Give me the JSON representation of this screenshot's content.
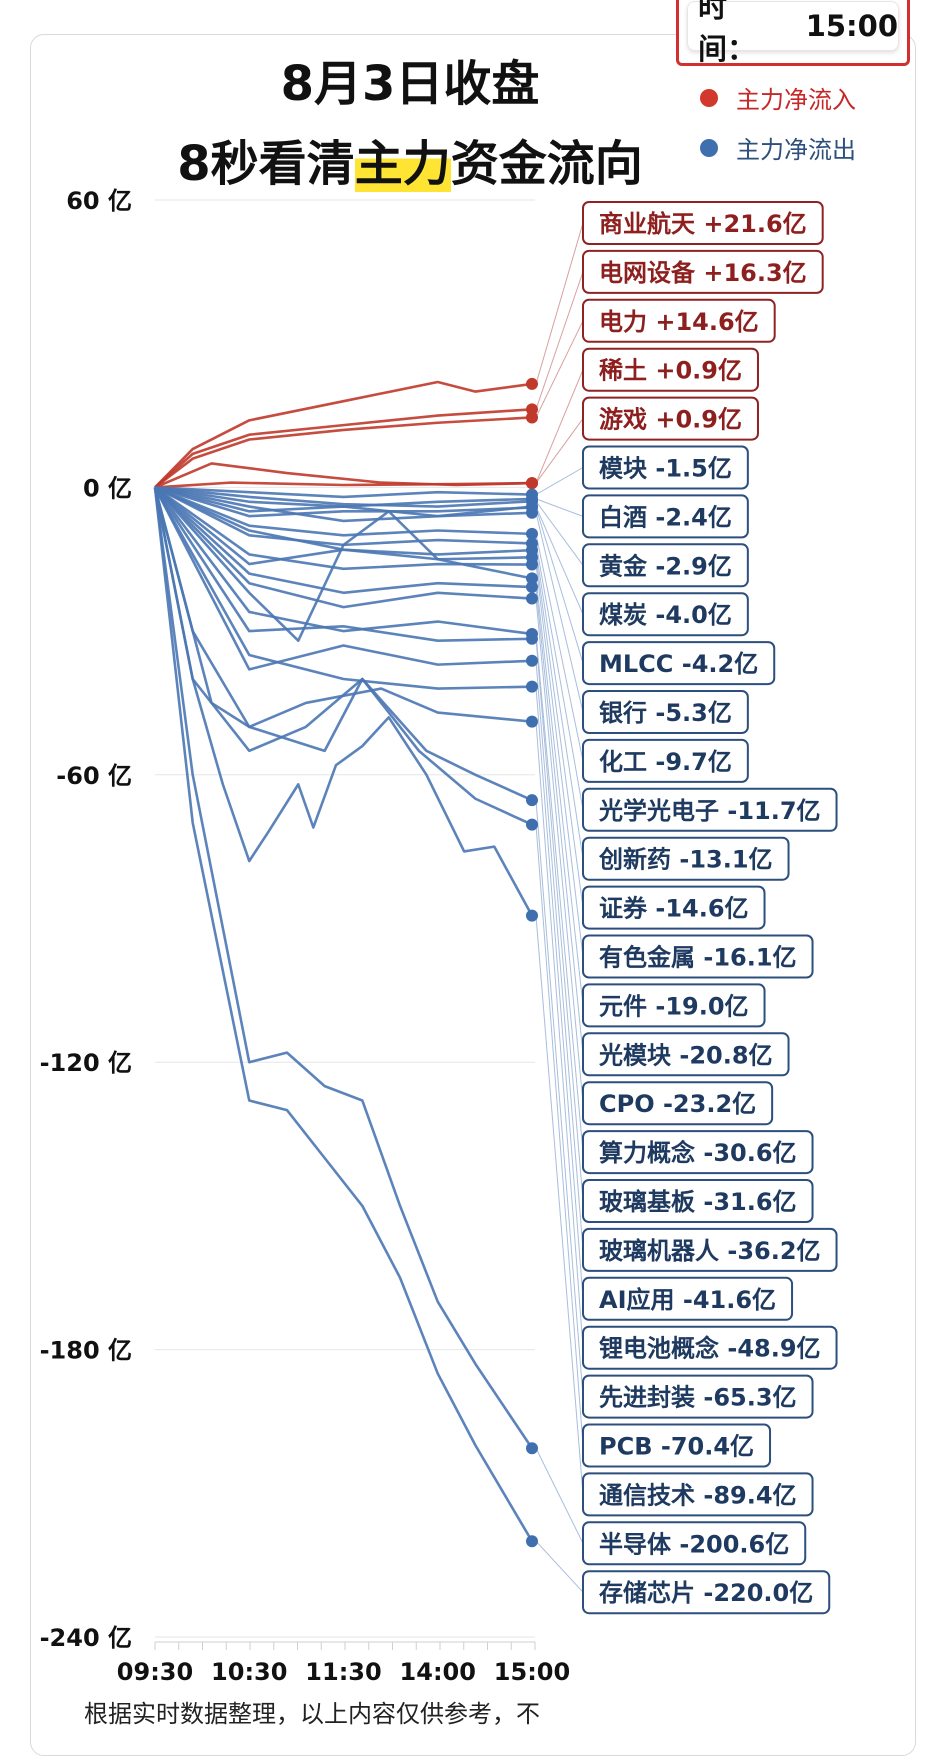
{
  "time_box": {
    "label": "时间：",
    "value": "15:00"
  },
  "title_line1": "8月3日收盘",
  "title_line2_pre": "8秒看清",
  "title_line2_highlight": "主力",
  "title_line2_post": "资金流向",
  "legend": [
    {
      "label": "主力净流入",
      "color": "#c62828"
    },
    {
      "label": "主力净流出",
      "color": "#3f6fae"
    }
  ],
  "footer_text": "根据实时数据整理，以上内容仅供参考，不",
  "chart_data": {
    "type": "line",
    "y_unit": "亿",
    "ylim": [
      -240,
      60
    ],
    "y_ticks": [
      60,
      0,
      -60,
      -120,
      -180,
      -240
    ],
    "y_tick_labels": [
      "60 亿",
      "0 亿",
      "-60 亿",
      "-120 亿",
      "-180 亿",
      "-240 亿"
    ],
    "x_tick_labels": [
      "09:30",
      "10:30",
      "11:30",
      "14:00",
      "15:00"
    ],
    "x_positions": [
      0,
      0.25,
      0.5,
      0.75,
      1
    ],
    "gridlines": true,
    "legend_position": "top-right",
    "series": [
      {
        "name": "商业航天",
        "label": "商业航天 +21.6亿",
        "value": 21.6,
        "direction": "inflow",
        "path": [
          [
            0,
            0
          ],
          [
            0.1,
            8
          ],
          [
            0.25,
            14
          ],
          [
            0.5,
            18
          ],
          [
            0.75,
            22
          ],
          [
            0.85,
            20
          ],
          [
            1,
            21.6
          ]
        ]
      },
      {
        "name": "电网设备",
        "label": "电网设备 +16.3亿",
        "value": 16.3,
        "direction": "inflow",
        "path": [
          [
            0,
            0
          ],
          [
            0.1,
            7
          ],
          [
            0.25,
            11
          ],
          [
            0.5,
            13
          ],
          [
            0.75,
            15
          ],
          [
            1,
            16.3
          ]
        ]
      },
      {
        "name": "电力",
        "label": "电力 +14.6亿",
        "value": 14.6,
        "direction": "inflow",
        "path": [
          [
            0,
            0
          ],
          [
            0.1,
            6
          ],
          [
            0.25,
            10
          ],
          [
            0.5,
            12
          ],
          [
            0.75,
            13.5
          ],
          [
            1,
            14.6
          ]
        ]
      },
      {
        "name": "稀土",
        "label": "稀土 +0.9亿",
        "value": 0.9,
        "direction": "inflow",
        "path": [
          [
            0,
            0
          ],
          [
            0.15,
            5
          ],
          [
            0.35,
            3
          ],
          [
            0.6,
            1
          ],
          [
            0.8,
            0.5
          ],
          [
            1,
            0.9
          ]
        ]
      },
      {
        "name": "游戏",
        "label": "游戏 +0.9亿",
        "value": 0.9,
        "direction": "inflow",
        "path": [
          [
            0,
            0
          ],
          [
            0.2,
            1
          ],
          [
            0.5,
            0.5
          ],
          [
            0.8,
            0.7
          ],
          [
            1,
            0.9
          ]
        ]
      },
      {
        "name": "模块",
        "label": "模块 -1.5亿",
        "value": -1.5,
        "direction": "outflow",
        "path": [
          [
            0,
            0
          ],
          [
            0.25,
            -1
          ],
          [
            0.5,
            -2
          ],
          [
            0.75,
            -1
          ],
          [
            1,
            -1.5
          ]
        ]
      },
      {
        "name": "白酒",
        "label": "白酒 -2.4亿",
        "value": -2.4,
        "direction": "outflow",
        "path": [
          [
            0,
            0
          ],
          [
            0.25,
            -3
          ],
          [
            0.5,
            -4
          ],
          [
            0.75,
            -3
          ],
          [
            1,
            -2.4
          ]
        ]
      },
      {
        "name": "黄金",
        "label": "黄金 -2.9亿",
        "value": -2.9,
        "direction": "outflow",
        "path": [
          [
            0,
            0
          ],
          [
            0.25,
            -2
          ],
          [
            0.5,
            -3.5
          ],
          [
            0.75,
            -4
          ],
          [
            1,
            -2.9
          ]
        ]
      },
      {
        "name": "煤炭",
        "label": "煤炭 -4.0亿",
        "value": -4.0,
        "direction": "outflow",
        "path": [
          [
            0,
            0
          ],
          [
            0.25,
            -5
          ],
          [
            0.5,
            -4
          ],
          [
            0.75,
            -6
          ],
          [
            1,
            -4.0
          ]
        ]
      },
      {
        "name": "MLCC",
        "label": "MLCC -4.2亿",
        "value": -4.2,
        "direction": "outflow",
        "path": [
          [
            0,
            0
          ],
          [
            0.25,
            -6
          ],
          [
            0.5,
            -5
          ],
          [
            0.75,
            -5
          ],
          [
            1,
            -4.2
          ]
        ]
      },
      {
        "name": "银行",
        "label": "银行 -5.3亿",
        "value": -5.3,
        "direction": "outflow",
        "path": [
          [
            0,
            0
          ],
          [
            0.25,
            -4
          ],
          [
            0.5,
            -7
          ],
          [
            0.75,
            -6
          ],
          [
            1,
            -5.3
          ]
        ]
      },
      {
        "name": "化工",
        "label": "化工 -9.7亿",
        "value": -9.7,
        "direction": "outflow",
        "path": [
          [
            0,
            0
          ],
          [
            0.25,
            -8
          ],
          [
            0.5,
            -10
          ],
          [
            0.75,
            -9
          ],
          [
            1,
            -9.7
          ]
        ]
      },
      {
        "name": "光学光电子",
        "label": "光学光电子 -11.7亿",
        "value": -11.7,
        "direction": "outflow",
        "path": [
          [
            0,
            0
          ],
          [
            0.25,
            -10
          ],
          [
            0.5,
            -12
          ],
          [
            0.75,
            -11
          ],
          [
            1,
            -11.7
          ]
        ]
      },
      {
        "name": "创新药",
        "label": "创新药 -13.1亿",
        "value": -13.1,
        "direction": "outflow",
        "path": [
          [
            0,
            0
          ],
          [
            0.25,
            -9
          ],
          [
            0.5,
            -13
          ],
          [
            0.75,
            -14
          ],
          [
            1,
            -13.1
          ]
        ]
      },
      {
        "name": "证券",
        "label": "证券 -14.6亿",
        "value": -14.6,
        "direction": "outflow",
        "path": [
          [
            0,
            0
          ],
          [
            0.25,
            -16
          ],
          [
            0.5,
            -13
          ],
          [
            0.75,
            -15
          ],
          [
            1,
            -14.6
          ]
        ]
      },
      {
        "name": "有色金属",
        "label": "有色金属 -16.1亿",
        "value": -16.1,
        "direction": "outflow",
        "path": [
          [
            0,
            0
          ],
          [
            0.25,
            -14
          ],
          [
            0.5,
            -17
          ],
          [
            0.75,
            -16
          ],
          [
            1,
            -16.1
          ]
        ]
      },
      {
        "name": "元件",
        "label": "元件 -19.0亿",
        "value": -19.0,
        "direction": "outflow",
        "path": [
          [
            0,
            0
          ],
          [
            0.25,
            -22
          ],
          [
            0.38,
            -32
          ],
          [
            0.5,
            -12
          ],
          [
            0.62,
            -5
          ],
          [
            0.75,
            -15
          ],
          [
            1,
            -19.0
          ]
        ]
      },
      {
        "name": "光模块",
        "label": "光模块 -20.8亿",
        "value": -20.8,
        "direction": "outflow",
        "path": [
          [
            0,
            0
          ],
          [
            0.25,
            -18
          ],
          [
            0.5,
            -22
          ],
          [
            0.75,
            -20
          ],
          [
            1,
            -20.8
          ]
        ]
      },
      {
        "name": "CPO",
        "label": "CPO -23.2亿",
        "value": -23.2,
        "direction": "outflow",
        "path": [
          [
            0,
            0
          ],
          [
            0.25,
            -20
          ],
          [
            0.5,
            -25
          ],
          [
            0.75,
            -22
          ],
          [
            1,
            -23.2
          ]
        ]
      },
      {
        "name": "算力概念",
        "label": "算力概念 -30.6亿",
        "value": -30.6,
        "direction": "outflow",
        "path": [
          [
            0,
            0
          ],
          [
            0.25,
            -26
          ],
          [
            0.5,
            -30
          ],
          [
            0.75,
            -28
          ],
          [
            1,
            -30.6
          ]
        ]
      },
      {
        "name": "玻璃基板",
        "label": "玻璃基板 -31.6亿",
        "value": -31.6,
        "direction": "outflow",
        "path": [
          [
            0,
            0
          ],
          [
            0.25,
            -30
          ],
          [
            0.5,
            -29
          ],
          [
            0.75,
            -32
          ],
          [
            1,
            -31.6
          ]
        ]
      },
      {
        "name": "玻璃机器人",
        "label": "玻璃机器人 -36.2亿",
        "value": -36.2,
        "direction": "outflow",
        "path": [
          [
            0,
            0
          ],
          [
            0.25,
            -38
          ],
          [
            0.5,
            -33
          ],
          [
            0.75,
            -37
          ],
          [
            1,
            -36.2
          ]
        ]
      },
      {
        "name": "AI应用",
        "label": "AI应用 -41.6亿",
        "value": -41.6,
        "direction": "outflow",
        "path": [
          [
            0,
            0
          ],
          [
            0.25,
            -35
          ],
          [
            0.5,
            -40
          ],
          [
            0.75,
            -42
          ],
          [
            1,
            -41.6
          ]
        ]
      },
      {
        "name": "锂电池概念",
        "label": "锂电池概念 -48.9亿",
        "value": -48.9,
        "direction": "outflow",
        "path": [
          [
            0,
            0
          ],
          [
            0.1,
            -30
          ],
          [
            0.25,
            -50
          ],
          [
            0.4,
            -45
          ],
          [
            0.6,
            -42
          ],
          [
            0.75,
            -47
          ],
          [
            1,
            -48.9
          ]
        ]
      },
      {
        "name": "先进封装",
        "label": "先进封装 -65.3亿",
        "value": -65.3,
        "direction": "outflow",
        "path": [
          [
            0,
            0
          ],
          [
            0.1,
            -40
          ],
          [
            0.25,
            -55
          ],
          [
            0.4,
            -50
          ],
          [
            0.55,
            -40
          ],
          [
            0.72,
            -55
          ],
          [
            0.85,
            -60
          ],
          [
            1,
            -65.3
          ]
        ]
      },
      {
        "name": "PCB",
        "label": "PCB -70.4亿",
        "value": -70.4,
        "direction": "outflow",
        "path": [
          [
            0,
            0
          ],
          [
            0.15,
            -45
          ],
          [
            0.25,
            -50
          ],
          [
            0.45,
            -55
          ],
          [
            0.55,
            -40
          ],
          [
            0.7,
            -55
          ],
          [
            0.85,
            -65
          ],
          [
            1,
            -70.4
          ]
        ]
      },
      {
        "name": "通信技术",
        "label": "通信技术 -89.4亿",
        "value": -89.4,
        "direction": "outflow",
        "path": [
          [
            0,
            0
          ],
          [
            0.1,
            -40
          ],
          [
            0.18,
            -62
          ],
          [
            0.25,
            -78
          ],
          [
            0.3,
            -72
          ],
          [
            0.38,
            -62
          ],
          [
            0.42,
            -71
          ],
          [
            0.48,
            -58
          ],
          [
            0.55,
            -54
          ],
          [
            0.62,
            -48
          ],
          [
            0.72,
            -60
          ],
          [
            0.82,
            -76
          ],
          [
            0.9,
            -75
          ],
          [
            1,
            -89.4
          ]
        ]
      },
      {
        "name": "半导体",
        "label": "半导体 -200.6亿",
        "value": -200.6,
        "direction": "outflow",
        "path": [
          [
            0,
            0
          ],
          [
            0.1,
            -60
          ],
          [
            0.25,
            -120
          ],
          [
            0.35,
            -118
          ],
          [
            0.45,
            -125
          ],
          [
            0.55,
            -128
          ],
          [
            0.65,
            -150
          ],
          [
            0.75,
            -170
          ],
          [
            0.85,
            -183
          ],
          [
            1,
            -200.6
          ]
        ]
      },
      {
        "name": "存储芯片",
        "label": "存储芯片 -220.0亿",
        "value": -220.0,
        "direction": "outflow",
        "path": [
          [
            0,
            0
          ],
          [
            0.1,
            -70
          ],
          [
            0.25,
            -128
          ],
          [
            0.35,
            -130
          ],
          [
            0.45,
            -140
          ],
          [
            0.55,
            -150
          ],
          [
            0.65,
            -165
          ],
          [
            0.75,
            -185
          ],
          [
            0.85,
            -200
          ],
          [
            1,
            -220.0
          ]
        ]
      }
    ]
  }
}
